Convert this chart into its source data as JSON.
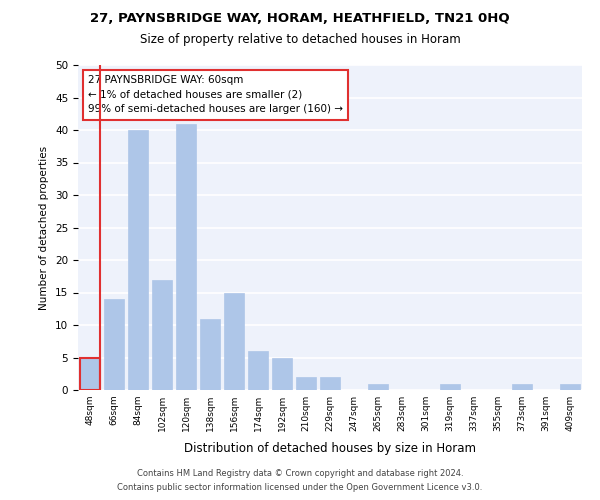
{
  "title1": "27, PAYNSBRIDGE WAY, HORAM, HEATHFIELD, TN21 0HQ",
  "title2": "Size of property relative to detached houses in Horam",
  "xlabel": "Distribution of detached houses by size in Horam",
  "ylabel": "Number of detached properties",
  "bar_labels": [
    "48sqm",
    "66sqm",
    "84sqm",
    "102sqm",
    "120sqm",
    "138sqm",
    "156sqm",
    "174sqm",
    "192sqm",
    "210sqm",
    "229sqm",
    "247sqm",
    "265sqm",
    "283sqm",
    "301sqm",
    "319sqm",
    "337sqm",
    "355sqm",
    "373sqm",
    "391sqm",
    "409sqm"
  ],
  "bar_values": [
    5,
    14,
    40,
    17,
    41,
    11,
    15,
    6,
    5,
    2,
    2,
    0,
    1,
    0,
    0,
    1,
    0,
    0,
    1,
    0,
    1
  ],
  "bar_color": "#aec6e8",
  "highlight_edge_color": "#e03030",
  "ylim": [
    0,
    50
  ],
  "yticks": [
    0,
    5,
    10,
    15,
    20,
    25,
    30,
    35,
    40,
    45,
    50
  ],
  "annotation_line1": "27 PAYNSBRIDGE WAY: 60sqm",
  "annotation_line2": "← 1% of detached houses are smaller (2)",
  "annotation_line3": "99% of semi-detached houses are larger (160) →",
  "footer1": "Contains HM Land Registry data © Crown copyright and database right 2024.",
  "footer2": "Contains public sector information licensed under the Open Government Licence v3.0.",
  "bg_color": "#eef2fb",
  "grid_color": "#ffffff"
}
